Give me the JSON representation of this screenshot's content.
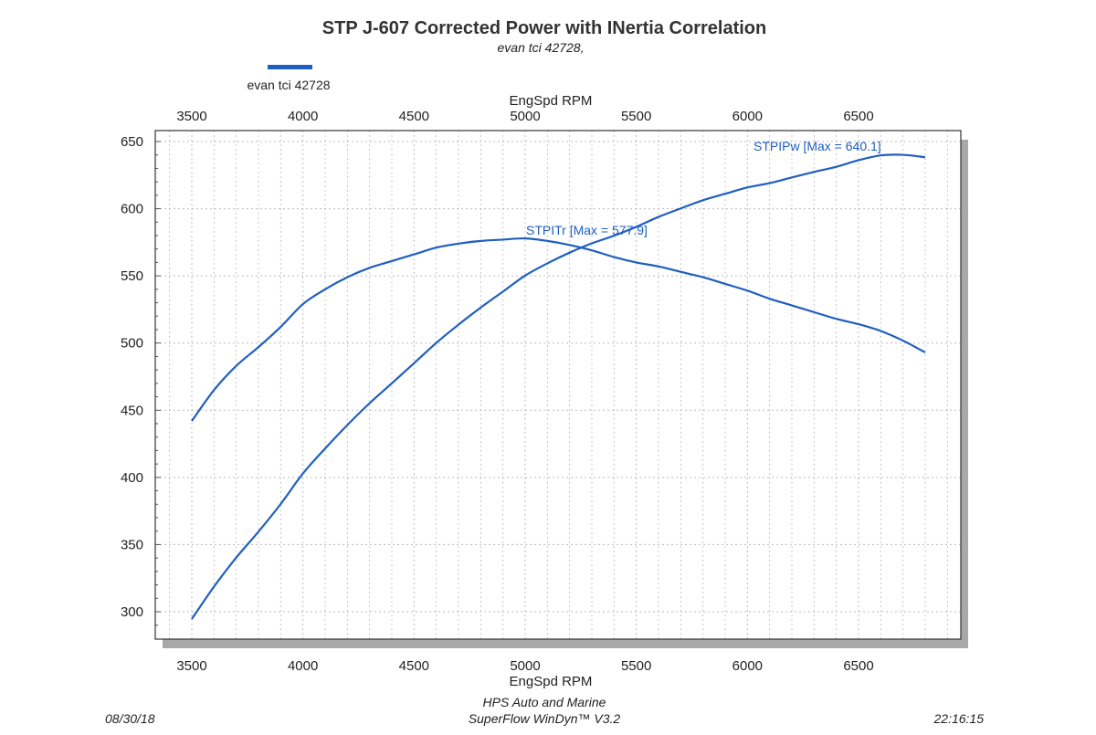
{
  "header": {
    "title": "STP J-607 Corrected Power with INertia Correlation",
    "subtitle": "evan tci 42728,"
  },
  "footer": {
    "date": "08/30/18",
    "company": "HPS Auto and Marine",
    "software": "SuperFlow WinDyn™ V3.2",
    "time": "22:16:15"
  },
  "chart_data": {
    "type": "line",
    "title": "STP J-607 Corrected Power with INertia Correlation",
    "subtitle": "evan tci 42728,",
    "legend": [
      {
        "label": "evan tci 42728",
        "color": "#1f5fbf"
      }
    ],
    "legend_placement": "top-left",
    "xlabel": "EngSpd RPM",
    "ylabel": "",
    "xlim": [
      3300,
      7000
    ],
    "ylim": [
      281,
      660
    ],
    "xticks": [
      3500,
      4000,
      4500,
      5000,
      5500,
      6000,
      6500
    ],
    "yticks": [
      300,
      350,
      400,
      450,
      500,
      550,
      600,
      650
    ],
    "grid": true,
    "x": [
      3500,
      3600,
      3700,
      3800,
      3900,
      4000,
      4100,
      4200,
      4300,
      4400,
      4500,
      4600,
      4700,
      4800,
      4900,
      5000,
      5100,
      5200,
      5300,
      5400,
      5500,
      5600,
      5700,
      5800,
      5900,
      6000,
      6100,
      6200,
      6300,
      6400,
      6500,
      6600,
      6700,
      6800
    ],
    "series": [
      {
        "name": "STPITr",
        "annotation": "STPITr [Max = 577.9]",
        "color": "#1f5fbf",
        "values": [
          442,
          465,
          483,
          497,
          512,
          529,
          540,
          549,
          556,
          561,
          566,
          571,
          574,
          576,
          577,
          577.9,
          576,
          573,
          569,
          564,
          560,
          557,
          553,
          549,
          544,
          539,
          533,
          528,
          523,
          518,
          514,
          509,
          501.8,
          493
        ]
      },
      {
        "name": "STPIPw",
        "annotation": "STPIPw [Max = 640.1]",
        "color": "#1f5fbf",
        "values": [
          294.6,
          318.7,
          340.3,
          359.6,
          380.2,
          402.9,
          421.5,
          439.0,
          455.2,
          470.0,
          485.0,
          500.1,
          513.7,
          526.4,
          538.3,
          550.2,
          559.3,
          567.3,
          574.2,
          579.9,
          586.5,
          593.9,
          600.2,
          606.3,
          611.1,
          615.8,
          619.0,
          623.3,
          627.4,
          631.2,
          636.1,
          639.7,
          640.1,
          638.3
        ]
      }
    ]
  }
}
